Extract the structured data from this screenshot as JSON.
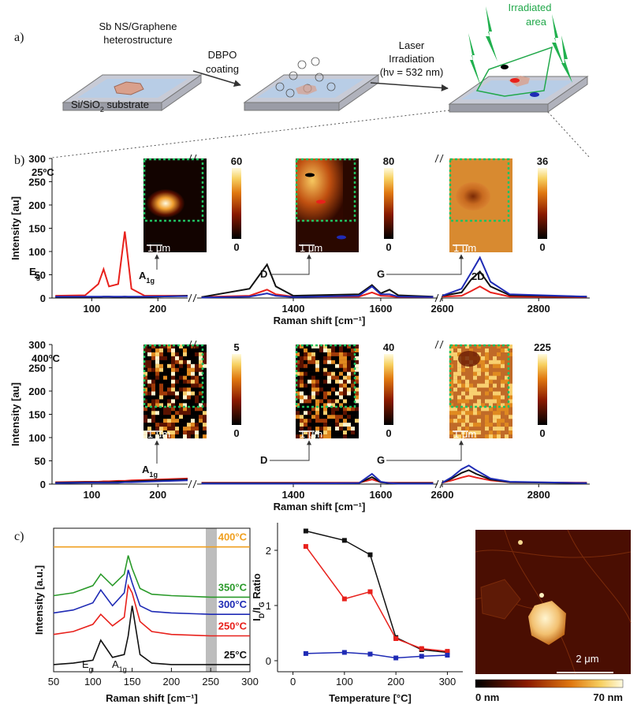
{
  "panel_labels": [
    "a)",
    "b)",
    "c)"
  ],
  "scheme": {
    "heterostructure": [
      "Sb NS/Graphene",
      "heterostructure"
    ],
    "substrate": [
      {
        "text": "Si/SiO"
      },
      {
        "sub": "2"
      },
      {
        "text": " substrate"
      }
    ],
    "coating": [
      "DBPO",
      "coating"
    ],
    "laser": [
      "Laser",
      "Irradiation",
      "(hν = 532 nm)"
    ],
    "irradiated": [
      "Irradiated",
      "area"
    ]
  },
  "chart_data": [
    {
      "type": "line",
      "temperature": "25ºC",
      "xlabel": "Raman shift [cm⁻¹]",
      "ylabel": "Intensity [au]",
      "ylim": [
        0,
        300
      ],
      "yticks": [
        0,
        50,
        100,
        150,
        200,
        250,
        300
      ],
      "x_segments": [
        {
          "xlim": [
            40,
            245
          ],
          "xticks": [
            100,
            200
          ]
        },
        {
          "xlim": [
            1180,
            1730
          ],
          "xticks": [
            1400,
            1600
          ]
        },
        {
          "xlim": [
            2600,
            2906
          ],
          "xticks": [
            2600,
            2800
          ]
        }
      ],
      "peak_labels": [
        [
          {
            "text": "E"
          },
          {
            "sub": "g"
          }
        ],
        [
          {
            "text": "A"
          },
          {
            "sub": "1g"
          }
        ],
        [
          {
            "text": "D"
          }
        ],
        [
          {
            "text": "G"
          }
        ],
        [
          {
            "text": "2D"
          }
        ]
      ],
      "insets": [
        {
          "max": 60,
          "min": 0,
          "scale_bar": "1 μm"
        },
        {
          "max": 80,
          "min": 0,
          "scale_bar": "1 μm"
        },
        {
          "max": 36,
          "min": 0,
          "scale_bar": "1 μm"
        }
      ],
      "x": [
        45,
        90,
        110,
        118,
        126,
        140,
        150,
        160,
        180,
        245,
        1190,
        1300,
        1340,
        1360,
        1400,
        1550,
        1580,
        1600,
        1620,
        1640,
        1720,
        2600,
        2640,
        2660,
        2678,
        2700,
        2740,
        2900
      ],
      "series": [
        {
          "color": "#e8211c",
          "values": [
            5,
            6,
            30,
            62,
            25,
            30,
            143,
            20,
            5,
            5,
            2,
            5,
            18,
            8,
            3,
            3,
            12,
            5,
            4,
            2,
            2,
            3,
            5,
            15,
            25,
            12,
            3,
            2
          ]
        },
        {
          "color": "#111111",
          "values": [
            2,
            2,
            2,
            3,
            3,
            2,
            3,
            2,
            2,
            5,
            2,
            20,
            72,
            25,
            5,
            8,
            28,
            10,
            18,
            6,
            3,
            5,
            12,
            40,
            57,
            25,
            6,
            3
          ]
        },
        {
          "color": "#1f2bb5",
          "values": [
            3,
            3,
            3,
            3,
            3,
            3,
            3,
            3,
            3,
            4,
            1,
            3,
            10,
            5,
            2,
            5,
            25,
            8,
            8,
            3,
            2,
            5,
            20,
            55,
            87,
            35,
            8,
            3
          ]
        }
      ]
    },
    {
      "type": "line",
      "temperature": "400ºC",
      "xlabel": "Raman shift [cm⁻¹]",
      "ylabel": "Intensity [au]",
      "ylim": [
        0,
        300
      ],
      "yticks": [
        0,
        50,
        100,
        150,
        200,
        250,
        300
      ],
      "x_segments": [
        {
          "xlim": [
            40,
            245
          ],
          "xticks": [
            100,
            200
          ]
        },
        {
          "xlim": [
            1180,
            1730
          ],
          "xticks": [
            1400,
            1600
          ]
        },
        {
          "xlim": [
            2600,
            2906
          ],
          "xticks": [
            2600,
            2800
          ]
        }
      ],
      "peak_labels": [
        [
          {
            "text": "A"
          },
          {
            "sub": "1g"
          }
        ],
        [
          {
            "text": "D"
          }
        ],
        [
          {
            "text": "G"
          }
        ]
      ],
      "insets": [
        {
          "max": 5,
          "min": 0,
          "scale_bar": "1 μm"
        },
        {
          "max": 40,
          "min": 0,
          "scale_bar": "1 μm"
        },
        {
          "max": 225,
          "min": 0,
          "scale_bar": "1 μm"
        }
      ],
      "x": [
        45,
        90,
        110,
        118,
        126,
        140,
        150,
        160,
        180,
        245,
        1190,
        1300,
        1340,
        1360,
        1400,
        1550,
        1580,
        1600,
        1620,
        1640,
        1720,
        2600,
        2620,
        2640,
        2655,
        2670,
        2700,
        2740,
        2900
      ],
      "series": [
        {
          "color": "#e8211c",
          "values": [
            4,
            5,
            5,
            6,
            6,
            7,
            7,
            8,
            9,
            12,
            3,
            3,
            3,
            3,
            3,
            3,
            10,
            4,
            3,
            3,
            3,
            3,
            8,
            14,
            18,
            14,
            8,
            4,
            3
          ]
        },
        {
          "color": "#111111",
          "values": [
            3,
            4,
            4,
            4,
            4,
            5,
            5,
            6,
            7,
            10,
            2,
            2,
            2,
            2,
            2,
            2,
            15,
            4,
            2,
            2,
            2,
            3,
            12,
            24,
            30,
            22,
            10,
            4,
            2
          ]
        },
        {
          "color": "#1f2bb5",
          "values": [
            2,
            3,
            3,
            3,
            3,
            3,
            4,
            4,
            5,
            8,
            1,
            1,
            1,
            1,
            1,
            2,
            22,
            5,
            2,
            1,
            1,
            3,
            15,
            32,
            40,
            30,
            12,
            5,
            2
          ]
        }
      ]
    },
    {
      "type": "line",
      "xlabel": "Raman shift [cm⁻¹]",
      "ylabel": "Intensity [a.u.]",
      "xlim": [
        50,
        300
      ],
      "xticks": [
        50,
        100,
        150,
        200,
        250,
        300
      ],
      "ylim": [
        0,
        10
      ],
      "peak_labels": [
        [
          {
            "text": "E"
          },
          {
            "sub": "g"
          }
        ],
        [
          {
            "text": "A"
          },
          {
            "sub": "1g"
          }
        ]
      ],
      "x": [
        50,
        75,
        100,
        110,
        125,
        140,
        145,
        150,
        160,
        175,
        200,
        250,
        300
      ],
      "series": [
        {
          "name": "25°C",
          "color": "#111111",
          "values": [
            0.5,
            0.6,
            0.8,
            2.2,
            1,
            1.2,
            2.5,
            4.6,
            1.2,
            0.6,
            0.5,
            0.5,
            0.5
          ]
        },
        {
          "name": "250°C",
          "color": "#e8211c",
          "values": [
            2.6,
            2.8,
            3.3,
            4,
            3.2,
            3.8,
            6,
            5.5,
            3.5,
            2.8,
            2.6,
            2.5,
            2.5
          ]
        },
        {
          "name": "300°C",
          "color": "#1f2bb5",
          "values": [
            4.1,
            4.3,
            4.8,
            5.7,
            4.6,
            5.5,
            7.1,
            6.2,
            4.6,
            4.2,
            4.1,
            4,
            4
          ]
        },
        {
          "name": "350°C",
          "color": "#2a9a2a",
          "values": [
            5.3,
            5.5,
            6,
            6.8,
            6,
            6.8,
            8.1,
            7.2,
            5.8,
            5.4,
            5.3,
            5.2,
            5.2
          ]
        },
        {
          "name": "400°C",
          "color": "#f0a020",
          "values": [
            8.7,
            8.7,
            8.7,
            8.7,
            8.7,
            8.7,
            8.7,
            8.7,
            8.7,
            8.7,
            8.7,
            8.7,
            8.7
          ]
        }
      ]
    },
    {
      "type": "line",
      "xlabel": "Temperature [°C]",
      "ylabel": [
        {
          "text": "I"
        },
        {
          "sub": "D"
        },
        {
          "text": "/I"
        },
        {
          "sub": "G"
        },
        {
          "text": " Ratio"
        }
      ],
      "xlim": [
        -30,
        330
      ],
      "xticks": [
        0,
        100,
        200,
        300
      ],
      "ylim": [
        -0.2,
        2.5
      ],
      "yticks": [
        0,
        1,
        2
      ],
      "x": [
        25,
        100,
        150,
        200,
        250,
        300
      ],
      "series": [
        {
          "color": "#111111",
          "values": [
            2.35,
            2.18,
            1.92,
            0.42,
            0.2,
            0.15
          ]
        },
        {
          "color": "#e8211c",
          "values": [
            2.07,
            1.12,
            1.25,
            0.4,
            0.22,
            0.17
          ]
        },
        {
          "color": "#1f2bb5",
          "values": [
            0.13,
            0.15,
            0.12,
            0.05,
            0.08,
            0.1
          ]
        }
      ]
    }
  ],
  "afm": {
    "scale_bar": "2 μm",
    "colorbar_labels": [
      "0 nm",
      "70 nm"
    ]
  }
}
